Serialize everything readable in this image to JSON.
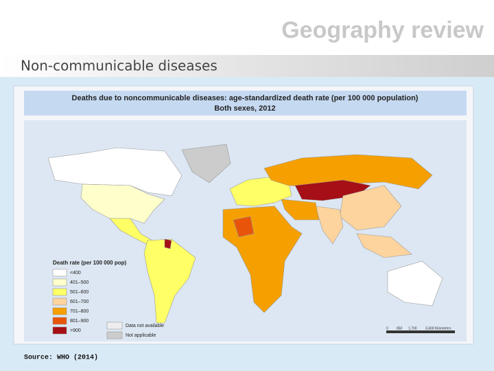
{
  "header": {
    "logo": "Geography review",
    "title": "Non-communicable diseases"
  },
  "map": {
    "title": "Deaths due to noncommunicable diseases: age-standardized death rate (per 100 000 population)",
    "subtitle": "Both sexes, 2012",
    "legend": {
      "title": "Death rate (per 100 000 pop)",
      "items": [
        {
          "label": "<400",
          "color": "#ffffff"
        },
        {
          "label": "401–500",
          "color": "#ffffcc"
        },
        {
          "label": "501–600",
          "color": "#ffff66"
        },
        {
          "label": "601–700",
          "color": "#fdd49e"
        },
        {
          "label": "701–800",
          "color": "#f5a000"
        },
        {
          "label": "801–900",
          "color": "#e8550a"
        },
        {
          "label": ">900",
          "color": "#a50f15"
        }
      ],
      "other": [
        {
          "label": "Data not available",
          "color": "#eeeeee"
        },
        {
          "label": "Not applicable",
          "color": "#cccccc"
        }
      ]
    },
    "scale": [
      "0",
      "850",
      "1,700",
      "3,400 Kilometers"
    ]
  },
  "source": "Source: WHO (2014)"
}
